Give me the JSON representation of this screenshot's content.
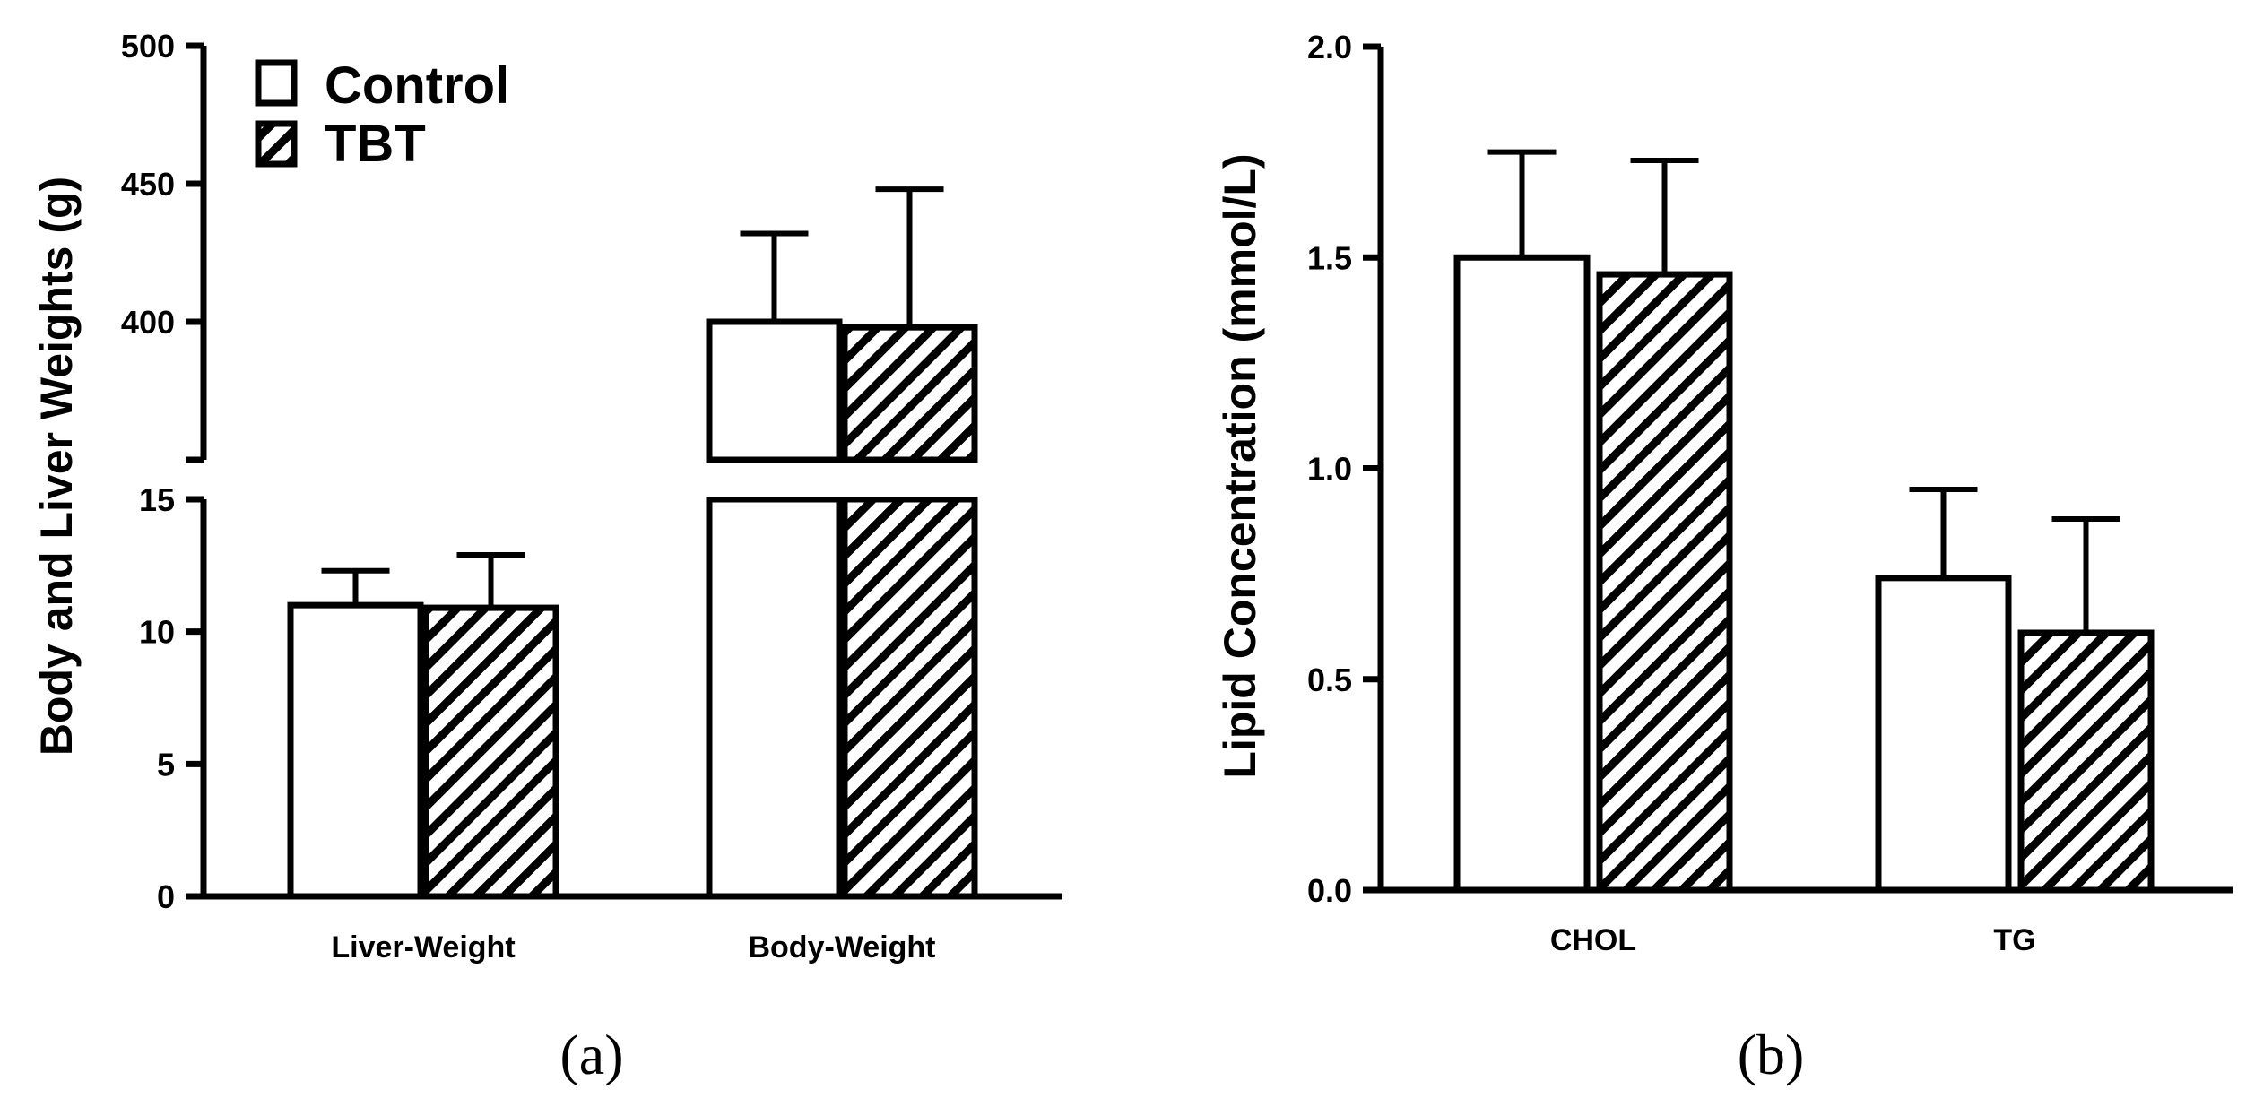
{
  "chart_data": [
    {
      "id": "a",
      "type": "bar",
      "panel_label": "(a)",
      "title": "",
      "xlabel": "",
      "ylabel": "Body and Liver Weights (g)",
      "categories": [
        "Liver-Weight",
        "Body-Weight"
      ],
      "series": [
        {
          "name": "Control",
          "values": [
            11,
            400
          ],
          "errors": [
            1.3,
            32
          ],
          "fill": "#ffffff"
        },
        {
          "name": "TBT",
          "values": [
            10.9,
            398
          ],
          "errors": [
            2.0,
            50
          ],
          "fill": "hatch"
        }
      ],
      "axis_break": true,
      "lower_segment": {
        "ylim": [
          0,
          15
        ],
        "ticks": [
          "0",
          "5",
          "10",
          "15"
        ]
      },
      "upper_segment": {
        "ylim": [
          350,
          500
        ],
        "ticks": [
          "400",
          "450",
          "500"
        ]
      },
      "legend": {
        "position": "top-left",
        "entries": [
          "Control",
          "TBT"
        ]
      }
    },
    {
      "id": "b",
      "type": "bar",
      "panel_label": "(b)",
      "title": "",
      "xlabel": "",
      "ylabel": "Lipid Concentration (mmol/L)",
      "categories": [
        "CHOL",
        "TG"
      ],
      "series": [
        {
          "name": "Control",
          "values": [
            1.5,
            0.74
          ],
          "errors": [
            0.25,
            0.21
          ],
          "fill": "#ffffff"
        },
        {
          "name": "TBT",
          "values": [
            1.46,
            0.61
          ],
          "errors": [
            0.27,
            0.27
          ],
          "fill": "hatch"
        }
      ],
      "ylim": [
        0,
        2.0
      ],
      "ticks": [
        "0.0",
        "0.5",
        "1.0",
        "1.5",
        "2.0"
      ]
    }
  ]
}
